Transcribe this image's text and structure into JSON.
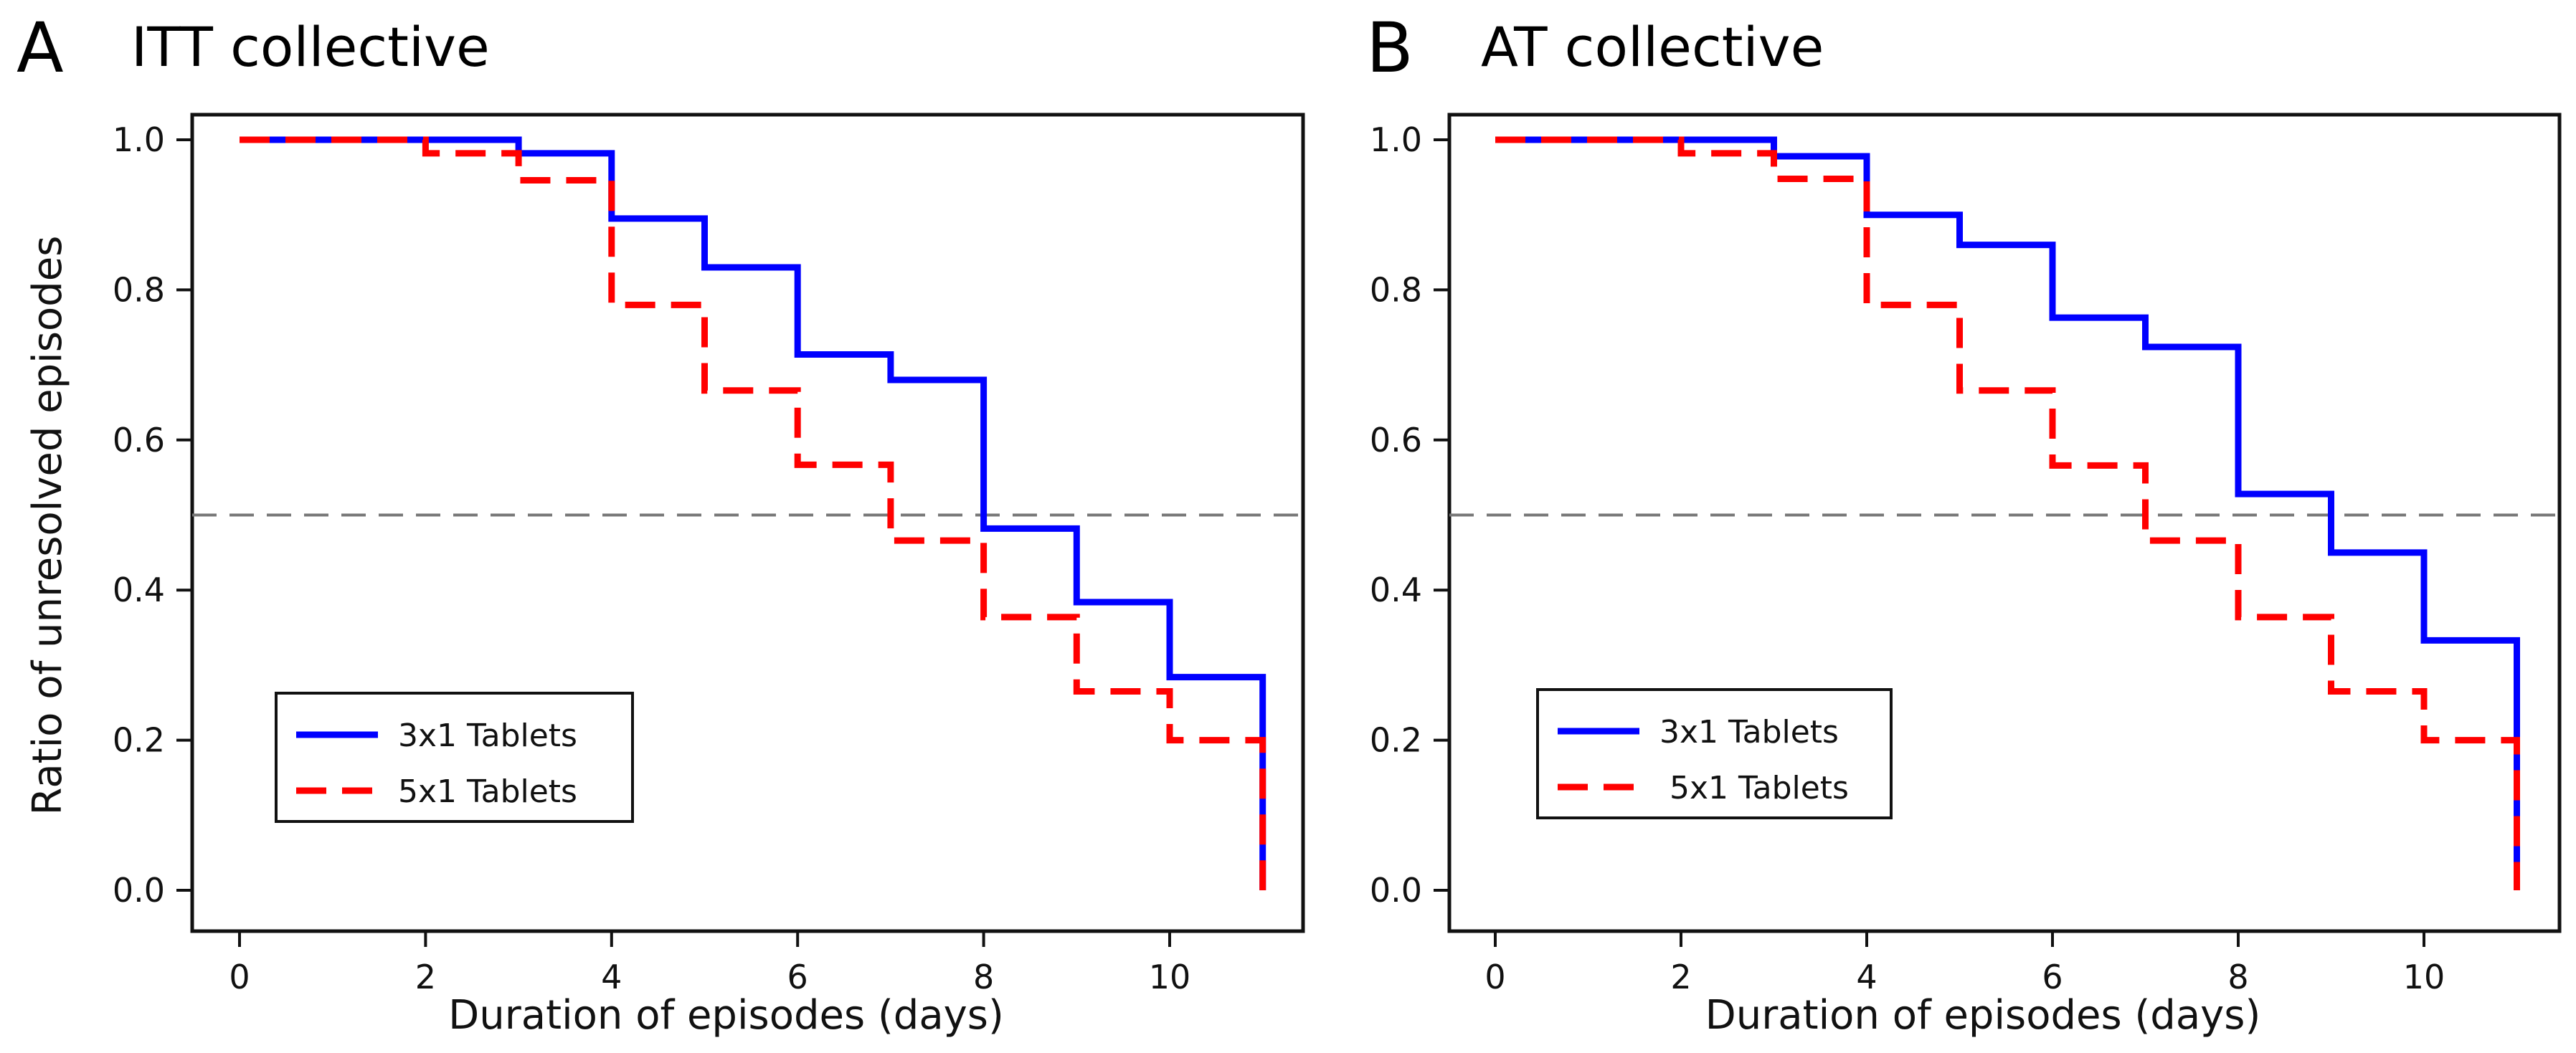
{
  "chart_data": [
    {
      "type": "line",
      "step": true,
      "panel_letter": "A",
      "title": "ITT collective",
      "xlabel": "Duration of episodes (days)",
      "ylabel": "Ratio of unresolved episodes",
      "xlim": [
        0,
        11
      ],
      "ylim": [
        0,
        1
      ],
      "xticks": [
        "0",
        "2",
        "4",
        "6",
        "8",
        "10"
      ],
      "yticks": [
        "0.0",
        "0.2",
        "0.4",
        "0.6",
        "0.8",
        "1.0"
      ],
      "reference_line": 0.5,
      "legend_position": "bottom-left",
      "series": [
        {
          "name": "3x1 Tablets",
          "color": "#0000ff",
          "style": "solid",
          "x": [
            0,
            3,
            4,
            5,
            6,
            7,
            8,
            9,
            10,
            11
          ],
          "y": [
            1.0,
            0.982,
            0.895,
            0.83,
            0.714,
            0.68,
            0.482,
            0.384,
            0.284,
            0.0
          ]
        },
        {
          "name": "5x1 Tablets",
          "color": "#ff0000",
          "style": "dashed",
          "x": [
            0,
            2,
            3,
            4,
            5,
            6,
            7,
            8,
            9,
            10,
            11
          ],
          "y": [
            1.0,
            0.982,
            0.946,
            0.78,
            0.666,
            0.567,
            0.466,
            0.364,
            0.265,
            0.2,
            0.0
          ]
        }
      ]
    },
    {
      "type": "line",
      "step": true,
      "panel_letter": "B",
      "title": "AT collective",
      "xlabel": "Duration of episodes (days)",
      "ylabel": "",
      "xlim": [
        0,
        11
      ],
      "ylim": [
        0,
        1
      ],
      "xticks": [
        "0",
        "2",
        "4",
        "6",
        "8",
        "10"
      ],
      "yticks": [
        "0.0",
        "0.2",
        "0.4",
        "0.6",
        "0.8",
        "1.0"
      ],
      "reference_line": 0.5,
      "legend_position": "bottom-left",
      "series": [
        {
          "name": "3x1 Tablets",
          "color": "#0000ff",
          "style": "solid",
          "x": [
            0,
            3,
            4,
            5,
            6,
            7,
            8,
            9,
            10,
            11
          ],
          "y": [
            1.0,
            0.978,
            0.9,
            0.86,
            0.763,
            0.724,
            0.528,
            0.45,
            0.333,
            0.0
          ]
        },
        {
          "name": "5x1 Tablets",
          "color": "#ff0000",
          "style": "dashed",
          "x": [
            0,
            2,
            3,
            4,
            5,
            6,
            7,
            8,
            9,
            10,
            11
          ],
          "y": [
            1.0,
            0.982,
            0.948,
            0.78,
            0.666,
            0.566,
            0.466,
            0.364,
            0.265,
            0.2,
            0.0
          ]
        }
      ]
    }
  ]
}
